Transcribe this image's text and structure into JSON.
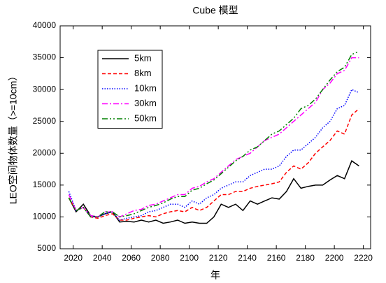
{
  "chart_data": {
    "type": "line",
    "title": "Cube 模型",
    "x_label": "年",
    "y_label": "LEO空间物体数量（>=10cm）",
    "x": [
      2017,
      2022,
      2027,
      2032,
      2037,
      2042,
      2047,
      2052,
      2057,
      2062,
      2067,
      2072,
      2077,
      2082,
      2087,
      2092,
      2097,
      2102,
      2107,
      2112,
      2117,
      2122,
      2127,
      2132,
      2137,
      2142,
      2147,
      2152,
      2157,
      2162,
      2167,
      2172,
      2177,
      2182,
      2187,
      2192,
      2197,
      2202,
      2207,
      2212,
      2217
    ],
    "xlim": [
      2011,
      2225
    ],
    "xticks": [
      2020,
      2040,
      2060,
      2080,
      2100,
      2120,
      2140,
      2160,
      2180,
      2200,
      2220
    ],
    "ylim": [
      5000,
      40000
    ],
    "yticks": [
      5000,
      10000,
      15000,
      20000,
      25000,
      30000,
      35000,
      40000
    ],
    "legend": "upper left",
    "series": [
      {
        "name": "5km",
        "color": "#000000",
        "style": "solid",
        "values": [
          13000,
          10800,
          12000,
          10200,
          10000,
          10500,
          10800,
          9200,
          9300,
          9200,
          9500,
          9200,
          9500,
          9000,
          9200,
          9500,
          9000,
          9200,
          9000,
          9000,
          10000,
          12000,
          11500,
          12000,
          11000,
          12500,
          12000,
          12500,
          13000,
          12800,
          14000,
          16000,
          14500,
          14800,
          15000,
          15000,
          15800,
          16500,
          16000,
          18800,
          18000
        ]
      },
      {
        "name": "8km",
        "color": "#ff0000",
        "style": "dashed",
        "values": [
          13000,
          11000,
          11500,
          10000,
          9800,
          10200,
          10500,
          9500,
          9500,
          9800,
          10000,
          10200,
          10000,
          10500,
          10800,
          11000,
          10800,
          11500,
          11000,
          11500,
          12500,
          13500,
          13500,
          14000,
          14000,
          14500,
          14800,
          15000,
          15200,
          15500,
          17000,
          18000,
          17500,
          18500,
          20000,
          21000,
          22000,
          23500,
          23000,
          26000,
          27000
        ]
      },
      {
        "name": "10km",
        "color": "#0000ff",
        "style": "dotted",
        "values": [
          14000,
          11000,
          11500,
          10000,
          10000,
          10500,
          10800,
          9500,
          9800,
          10000,
          10200,
          10800,
          11000,
          11500,
          12000,
          12000,
          11500,
          12500,
          12000,
          13000,
          13500,
          14500,
          15000,
          15500,
          15500,
          16500,
          17000,
          17500,
          17500,
          18000,
          19500,
          20500,
          20500,
          21500,
          22500,
          24000,
          25000,
          27000,
          27500,
          30000,
          29500
        ]
      },
      {
        "name": "30km",
        "color": "#ff00ff",
        "style": "dashdot",
        "values": [
          13500,
          11000,
          11500,
          10200,
          10000,
          10800,
          10800,
          10000,
          10500,
          11000,
          11200,
          11800,
          12000,
          12500,
          13000,
          13500,
          13500,
          14500,
          14800,
          15500,
          16000,
          17000,
          18000,
          19000,
          19500,
          20000,
          21000,
          22000,
          22500,
          23000,
          24000,
          25000,
          26000,
          27000,
          28000,
          30000,
          31000,
          32500,
          33000,
          35000,
          35000
        ]
      },
      {
        "name": "50km",
        "color": "#008000",
        "style": "dashdotdot",
        "values": [
          13000,
          11000,
          11500,
          10000,
          10000,
          10800,
          10800,
          10000,
          10200,
          10500,
          11000,
          11500,
          11800,
          12200,
          12800,
          13200,
          13200,
          14200,
          14500,
          15200,
          15800,
          16800,
          17800,
          18800,
          19500,
          20500,
          21000,
          22000,
          23000,
          23500,
          24500,
          25500,
          27000,
          27500,
          28500,
          30000,
          31500,
          32800,
          33500,
          35500,
          36000
        ]
      }
    ]
  }
}
